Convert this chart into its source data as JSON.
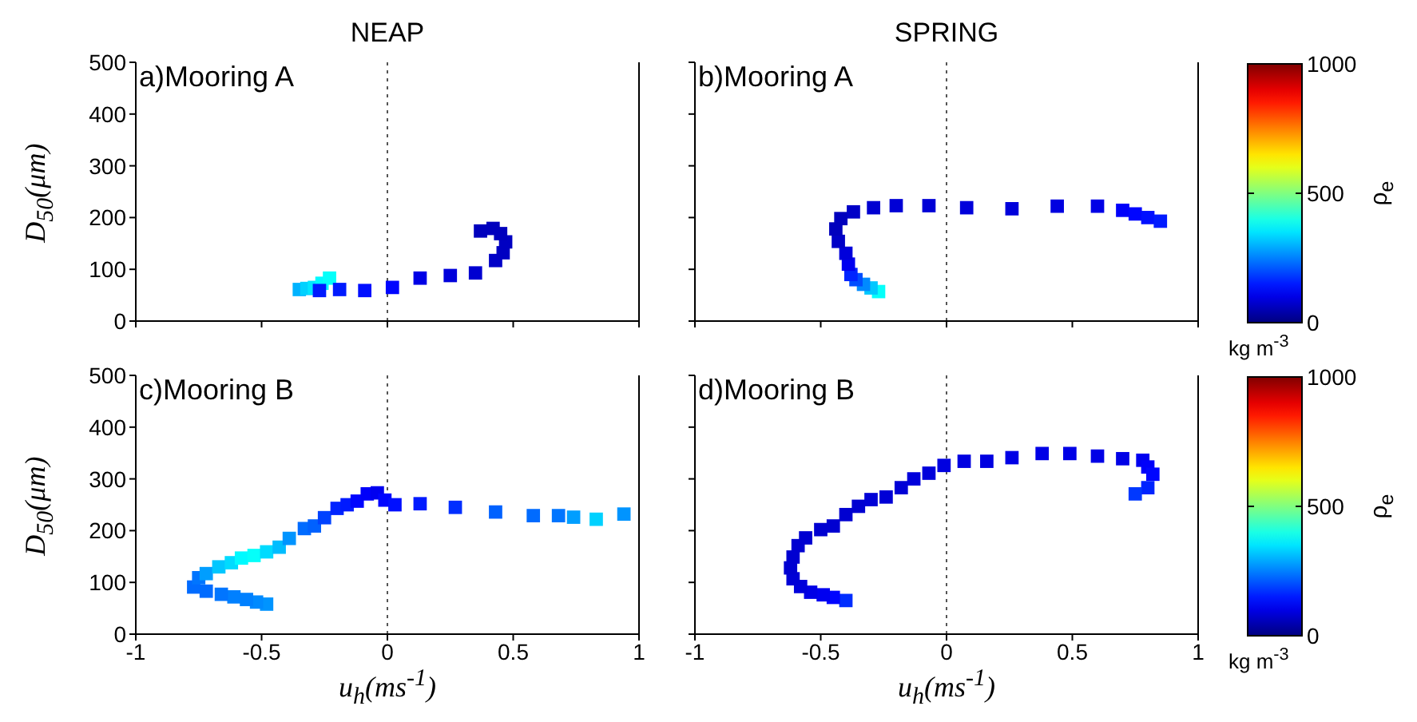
{
  "chart_data": [
    {
      "type": "scatter",
      "title": "NEAP",
      "ylabel": "D$_{50}$(μm)",
      "annotations": [
        "a)Mooring A"
      ],
      "marker": "square",
      "tick_labels": "y",
      "xlim": [
        -1,
        1
      ],
      "ylim": [
        0,
        500
      ],
      "xticks": [
        -1,
        -0.5,
        0,
        0.5,
        1
      ],
      "yticks": [
        0,
        100,
        200,
        300,
        400,
        500
      ],
      "ref_lines": [
        {
          "axis": "x",
          "value": 0,
          "line_style": "dotted",
          "color": "#555555"
        }
      ],
      "x": [
        -0.35,
        -0.32,
        -0.29,
        -0.26,
        -0.23,
        -0.27,
        -0.19,
        -0.09,
        0.02,
        0.13,
        0.25,
        0.35,
        0.43,
        0.46,
        0.47,
        0.45,
        0.42,
        0.37
      ],
      "values": [
        61,
        63,
        65,
        73,
        83,
        59,
        61,
        59,
        65,
        83,
        88,
        93,
        117,
        132,
        153,
        169,
        179,
        174
      ],
      "colors": [
        "#00b3ff",
        "#00d1ff",
        "#00e6ff",
        "#00faff",
        "#05fffa",
        "#001aff",
        "#001aff",
        "#000fff",
        "#0005ff",
        "#0000e6",
        "#0000db",
        "#0000d1",
        "#0000c7",
        "#0000c2",
        "#0000c2",
        "#0000bd",
        "#0000bd",
        "#0000bd"
      ]
    },
    {
      "type": "scatter",
      "title": "SPRING",
      "annotations": [
        "b)Mooring A",
        "kg m$^{-3}$"
      ],
      "marker": "square",
      "tick_labels": false,
      "xlim": [
        -1,
        1
      ],
      "ylim": [
        0,
        500
      ],
      "xticks": [
        -1,
        -0.5,
        0,
        0.5,
        1
      ],
      "yticks": [
        0,
        100,
        200,
        300,
        400,
        500
      ],
      "clim": [
        0,
        1000
      ],
      "cticks": [
        0,
        500,
        1000
      ],
      "clabel": "ρ$_{e}$",
      "ref_lines": [
        {
          "axis": "x",
          "value": 0,
          "line_style": "dotted",
          "color": "#555555"
        }
      ],
      "x": [
        -0.27,
        -0.3,
        -0.33,
        -0.36,
        -0.38,
        -0.39,
        -0.4,
        -0.43,
        -0.44,
        -0.42,
        -0.37,
        -0.29,
        -0.2,
        -0.07,
        0.08,
        0.26,
        0.44,
        0.6,
        0.7,
        0.75,
        0.8,
        0.85
      ],
      "values": [
        57,
        64,
        71,
        80,
        90,
        110,
        131,
        154,
        178,
        198,
        211,
        219,
        223,
        223,
        219,
        217,
        222,
        222,
        214,
        207,
        200,
        193
      ],
      "cvalues": [
        380,
        320,
        260,
        200,
        160,
        110,
        90,
        70,
        60,
        60,
        70,
        80,
        85,
        85,
        90,
        90,
        95,
        100,
        120,
        130,
        140,
        150
      ]
    },
    {
      "type": "scatter",
      "xlabel": "u$_{h}$(ms$^{-1}$)",
      "ylabel": "D$_{50}$(μm)",
      "annotations": [
        "c)Mooring B"
      ],
      "marker": "square",
      "xlim": [
        -1,
        1
      ],
      "ylim": [
        0,
        500
      ],
      "xticks": [
        -1,
        -0.5,
        0,
        0.5,
        1
      ],
      "yticks": [
        0,
        100,
        200,
        300,
        400,
        500
      ],
      "ref_lines": [
        {
          "axis": "x",
          "value": 0,
          "line_style": "dotted",
          "color": "#555555"
        }
      ],
      "x": [
        -0.48,
        -0.52,
        -0.56,
        -0.61,
        -0.66,
        -0.72,
        -0.77,
        -0.75,
        -0.72,
        -0.67,
        -0.62,
        -0.58,
        -0.53,
        -0.48,
        -0.43,
        -0.39,
        -0.33,
        -0.29,
        -0.25,
        -0.2,
        -0.16,
        -0.12,
        -0.08,
        -0.04,
        -0.01,
        0.03,
        0.13,
        0.27,
        0.43,
        0.58,
        0.68,
        0.74,
        0.83,
        0.94
      ],
      "values": [
        58,
        62,
        67,
        72,
        77,
        83,
        91,
        109,
        117,
        130,
        138,
        147,
        152,
        159,
        168,
        185,
        204,
        209,
        225,
        243,
        250,
        257,
        271,
        273,
        259,
        250,
        252,
        245,
        236,
        229,
        229,
        226,
        222,
        232
      ],
      "colors": [
        "#0094ff",
        "#008aff",
        "#0080ff",
        "#0080ff",
        "#0075ff",
        "#006bff",
        "#006bff",
        "#0075ff",
        "#009eff",
        "#00c7ff",
        "#00dbff",
        "#00faff",
        "#05fffa",
        "#00dbff",
        "#00bdff",
        "#0094ff",
        "#006bff",
        "#0061ff",
        "#0042ff",
        "#0024ff",
        "#001aff",
        "#0005ff",
        "#0000fa",
        "#0000f0",
        "#0005ff",
        "#000fff",
        "#001aff",
        "#002eff",
        "#0061ff",
        "#006bff",
        "#0075ff",
        "#009eff",
        "#00d1ff",
        "#0094ff"
      ]
    },
    {
      "type": "scatter",
      "xlabel": "u$_{h}$(ms$^{-1}$)",
      "annotations": [
        "d)Mooring B",
        "kg m$^{-3}$"
      ],
      "marker": "square",
      "tick_labels": "x",
      "xlim": [
        -1,
        1
      ],
      "ylim": [
        0,
        500
      ],
      "xticks": [
        -1,
        -0.5,
        0,
        0.5,
        1
      ],
      "yticks": [
        0,
        100,
        200,
        300,
        400,
        500
      ],
      "clim": [
        0,
        1000
      ],
      "cticks": [
        0,
        500,
        1000
      ],
      "clabel": "ρ$_{e}$",
      "ref_lines": [
        {
          "axis": "x",
          "value": 0,
          "line_style": "dotted",
          "color": "#555555"
        }
      ],
      "x": [
        -0.4,
        -0.45,
        -0.49,
        -0.54,
        -0.58,
        -0.61,
        -0.62,
        -0.61,
        -0.59,
        -0.56,
        -0.5,
        -0.45,
        -0.4,
        -0.35,
        -0.3,
        -0.24,
        -0.18,
        -0.13,
        -0.07,
        -0.01,
        0.07,
        0.16,
        0.26,
        0.38,
        0.49,
        0.6,
        0.7,
        0.78,
        0.8,
        0.82,
        0.8,
        0.75
      ],
      "values": [
        65,
        71,
        76,
        81,
        92,
        107,
        128,
        149,
        171,
        186,
        202,
        209,
        231,
        247,
        260,
        265,
        283,
        300,
        311,
        326,
        334,
        334,
        341,
        349,
        349,
        344,
        339,
        336,
        323,
        309,
        283,
        271
      ],
      "cvalues": [
        170,
        130,
        110,
        100,
        90,
        85,
        80,
        80,
        80,
        80,
        80,
        80,
        80,
        80,
        85,
        85,
        85,
        90,
        90,
        95,
        95,
        95,
        100,
        100,
        100,
        100,
        100,
        110,
        120,
        130,
        160,
        180
      ]
    }
  ]
}
